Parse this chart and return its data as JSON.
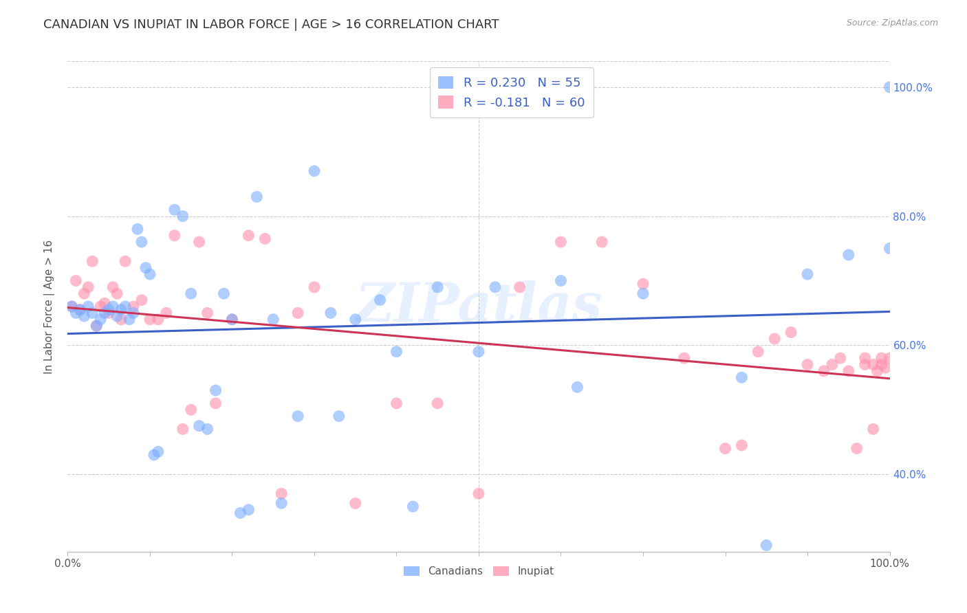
{
  "title": "CANADIAN VS INUPIAT IN LABOR FORCE | AGE > 16 CORRELATION CHART",
  "source": "Source: ZipAtlas.com",
  "ylabel": "In Labor Force | Age > 16",
  "xlim": [
    0.0,
    1.0
  ],
  "ylim": [
    0.28,
    1.04
  ],
  "xticks": [
    0.0,
    0.1,
    0.2,
    0.3,
    0.4,
    0.5,
    0.6,
    0.7,
    0.8,
    0.9,
    1.0
  ],
  "xtick_labels_show": [
    "0.0%",
    "",
    "",
    "",
    "",
    "",
    "",
    "",
    "",
    "",
    "100.0%"
  ],
  "yticks": [
    0.4,
    0.6,
    0.8,
    1.0
  ],
  "ytick_labels": [
    "40.0%",
    "60.0%",
    "80.0%",
    "100.0%"
  ],
  "canadian_R": 0.23,
  "canadian_N": 55,
  "inupiat_R": -0.181,
  "inupiat_N": 60,
  "canadian_color": "#7aadff",
  "inupiat_color": "#ff8fab",
  "trend_canadian_color": "#3a5fc8",
  "trend_inupiat_color": "#cc3355",
  "background_color": "#ffffff",
  "grid_color": "#cccccc",
  "watermark": "ZIPatlas",
  "legend_text_color": "#3a5fc8",
  "canadians_x": [
    0.005,
    0.01,
    0.015,
    0.02,
    0.025,
    0.03,
    0.035,
    0.04,
    0.045,
    0.05,
    0.055,
    0.06,
    0.065,
    0.07,
    0.075,
    0.08,
    0.085,
    0.09,
    0.095,
    0.1,
    0.105,
    0.11,
    0.13,
    0.14,
    0.15,
    0.16,
    0.17,
    0.18,
    0.19,
    0.2,
    0.21,
    0.22,
    0.23,
    0.25,
    0.26,
    0.28,
    0.3,
    0.32,
    0.33,
    0.35,
    0.38,
    0.4,
    0.42,
    0.45,
    0.5,
    0.52,
    0.6,
    0.62,
    0.7,
    0.82,
    0.85,
    0.9,
    0.95,
    1.0,
    1.0
  ],
  "canadians_y": [
    0.66,
    0.65,
    0.655,
    0.645,
    0.66,
    0.65,
    0.63,
    0.64,
    0.65,
    0.655,
    0.66,
    0.645,
    0.655,
    0.66,
    0.64,
    0.65,
    0.78,
    0.76,
    0.72,
    0.71,
    0.43,
    0.435,
    0.81,
    0.8,
    0.68,
    0.475,
    0.47,
    0.53,
    0.68,
    0.64,
    0.34,
    0.345,
    0.83,
    0.64,
    0.355,
    0.49,
    0.87,
    0.65,
    0.49,
    0.64,
    0.67,
    0.59,
    0.35,
    0.69,
    0.59,
    0.69,
    0.7,
    0.535,
    0.68,
    0.55,
    0.29,
    0.71,
    0.74,
    0.75,
    1.0
  ],
  "inupiat_x": [
    0.005,
    0.01,
    0.015,
    0.02,
    0.025,
    0.03,
    0.035,
    0.04,
    0.045,
    0.05,
    0.055,
    0.06,
    0.065,
    0.07,
    0.08,
    0.09,
    0.1,
    0.11,
    0.12,
    0.13,
    0.14,
    0.15,
    0.16,
    0.17,
    0.18,
    0.2,
    0.22,
    0.24,
    0.26,
    0.28,
    0.3,
    0.35,
    0.4,
    0.45,
    0.5,
    0.55,
    0.6,
    0.65,
    0.7,
    0.75,
    0.8,
    0.82,
    0.84,
    0.86,
    0.88,
    0.9,
    0.92,
    0.93,
    0.94,
    0.95,
    0.96,
    0.97,
    0.97,
    0.98,
    0.98,
    0.985,
    0.99,
    0.99,
    0.995,
    1.0
  ],
  "inupiat_y": [
    0.66,
    0.7,
    0.655,
    0.68,
    0.69,
    0.73,
    0.63,
    0.66,
    0.665,
    0.65,
    0.69,
    0.68,
    0.64,
    0.73,
    0.66,
    0.67,
    0.64,
    0.64,
    0.65,
    0.77,
    0.47,
    0.5,
    0.76,
    0.65,
    0.51,
    0.64,
    0.77,
    0.765,
    0.37,
    0.65,
    0.69,
    0.355,
    0.51,
    0.51,
    0.37,
    0.69,
    0.76,
    0.76,
    0.695,
    0.58,
    0.44,
    0.445,
    0.59,
    0.61,
    0.62,
    0.57,
    0.56,
    0.57,
    0.58,
    0.56,
    0.44,
    0.58,
    0.57,
    0.47,
    0.57,
    0.56,
    0.57,
    0.58,
    0.565,
    0.58
  ]
}
